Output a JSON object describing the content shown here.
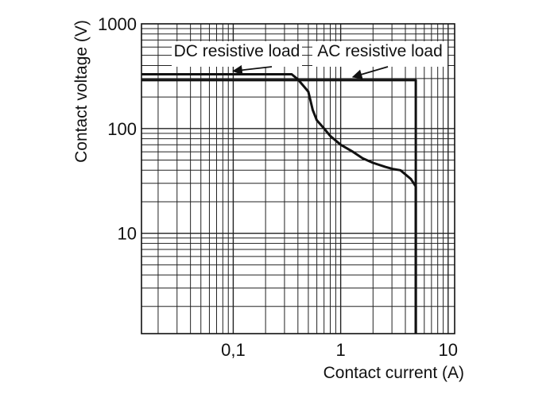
{
  "chart_data": {
    "type": "line",
    "title": "",
    "xlabel": "Contact current (A)",
    "ylabel": "Contact voltage (V)",
    "x_scale": "log",
    "y_scale": "log",
    "xlim": [
      0.014,
      11.5
    ],
    "ylim": [
      1.1,
      1000
    ],
    "grid": true,
    "x_ticks": [
      {
        "value": 0.1,
        "label": "0,1"
      },
      {
        "value": 1,
        "label": "1"
      },
      {
        "value": 10,
        "label": "10"
      }
    ],
    "y_ticks": [
      {
        "value": 10,
        "label": "10"
      },
      {
        "value": 100,
        "label": "100"
      },
      {
        "value": 1000,
        "label": "1000"
      }
    ],
    "series": [
      {
        "name": "DC resistive load",
        "x": [
          0.014,
          0.35,
          0.4,
          0.5,
          0.55,
          0.6,
          0.7,
          0.8,
          1.0,
          1.3,
          1.6,
          2.0,
          2.6,
          3.1,
          3.6,
          4.5,
          5.0,
          5.0
        ],
        "y": [
          330,
          330,
          295,
          225,
          150,
          120,
          100,
          85,
          70,
          60,
          52,
          47,
          43,
          41,
          40,
          33,
          28,
          1.1
        ]
      },
      {
        "name": "AC resistive load",
        "x": [
          0.014,
          5.0,
          5.0
        ],
        "y": [
          290,
          290,
          1.1
        ]
      }
    ],
    "annotations": [
      {
        "text": "DC resistive load",
        "series": "DC resistive load",
        "arrow_to": {
          "x": 0.1,
          "y": 330
        }
      },
      {
        "text": "AC resistive load",
        "series": "AC resistive load",
        "arrow_to": {
          "x": 1.3,
          "y": 290
        }
      }
    ]
  }
}
